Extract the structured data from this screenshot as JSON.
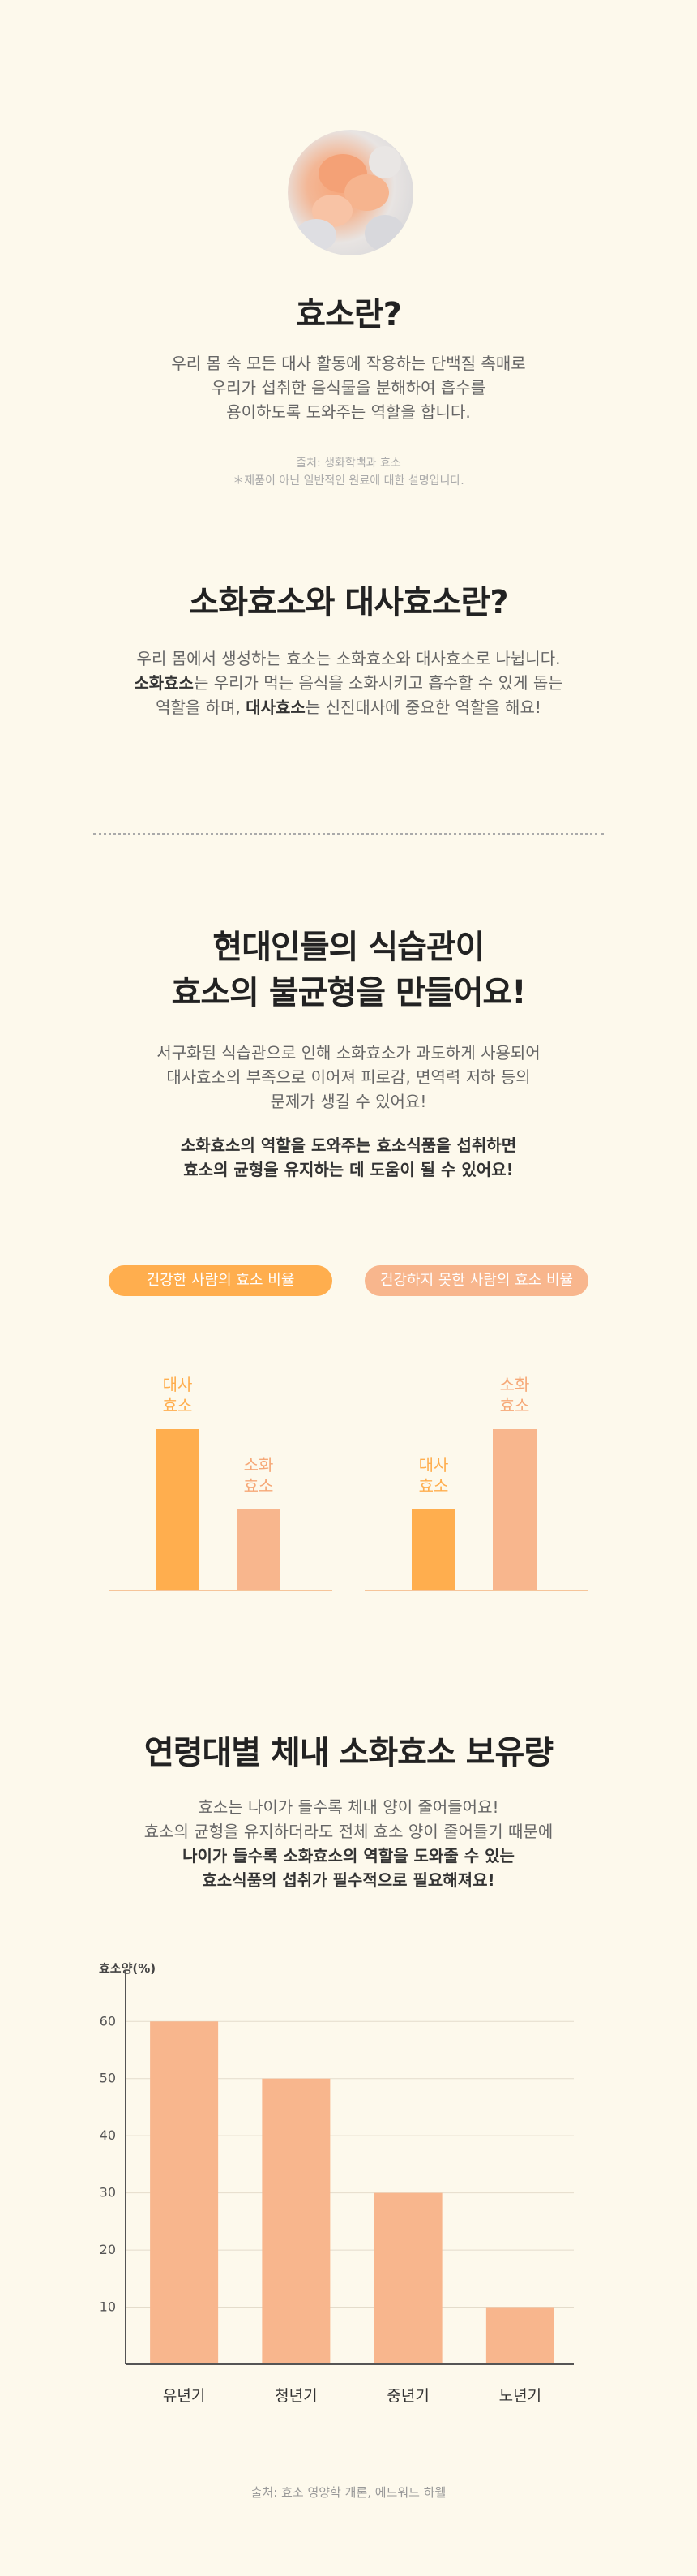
{
  "section1": {
    "title": "효소란?",
    "desc": [
      "우리 몸 속 모든 대사 활동에 작용하는 단백질 촉매로",
      "우리가 섭취한 음식물을 분해하여 흡수를",
      "용이하도록 도와주는 역할을 합니다."
    ],
    "source": "출처: 생화학백과 효소",
    "note": "＊제품이 아닌 일반적인 원료에 대한 설명입니다."
  },
  "section2": {
    "title": "소화효소와 대사효소란?",
    "line1": "우리 몸에서 생성하는 효소는 소화효소와 대사효소로 나뉩니다.",
    "line2_bold": "소화효소",
    "line2_rest": "는 우리가 먹는 음식을 소화시키고 흡수할 수 있게 돕는",
    "line3_pre": "역할을 하며, ",
    "line3_bold": "대사효소",
    "line3_rest": "는 신진대사에 중요한 역할을 해요!"
  },
  "section3": {
    "title": [
      "현대인들의 식습관이",
      "효소의 불균형을 만들어요!"
    ],
    "desc": [
      "서구화된 식습관으로 인해 소화효소가 과도하게 사용되어",
      "대사효소의 부족으로 이어져 피로감, 면역력 저하 등의",
      "문제가 생길 수 있어요!"
    ],
    "bold": [
      "소화효소의 역할을 도와주는 효소식품을 섭취하면",
      "효소의 균형을 유지하는 데 도움이 될 수 있어요!"
    ],
    "healthy_label": "건강한 사람의 효소 비율",
    "unhealthy_label": "건강하지 못한 사람의 효소 비율",
    "metabolic": [
      "대사",
      "효소"
    ],
    "digestive": [
      "소화",
      "효소"
    ]
  },
  "section4": {
    "title": "연령대별 체내 소화효소 보유량",
    "desc": [
      "효소는 나이가 들수록 체내 양이 줄어들어요!",
      "효소의 균형을 유지하더라도 전체 효소 양이 줄어들기 때문에"
    ],
    "bold": [
      "나이가 들수록 소화효소의 역할을 도와줄 수 있는",
      "효소식품의 섭취가 필수적으로 필요해져요!"
    ],
    "source": "출처: 효소 영양학 개론, 에드워드 하웰"
  },
  "colors": {
    "background": "#fdf9ec",
    "orange": "#ffae4e",
    "salmon": "#f8b68d",
    "axis": "#555555",
    "grid": "#e4dccb"
  },
  "chart_data": [
    {
      "type": "bar",
      "title": "건강한 사람의 효소 비율",
      "categories": [
        "대사 효소",
        "소화 효소"
      ],
      "values": [
        2,
        1
      ]
    },
    {
      "type": "bar",
      "title": "건강하지 못한 사람의 효소 비율",
      "categories": [
        "대사 효소",
        "소화 효소"
      ],
      "values": [
        1,
        2
      ]
    },
    {
      "type": "bar",
      "title": "연령대별 체내 소화효소 보유량",
      "ylabel": "효소양(%)",
      "categories": [
        "유년기",
        "청년기",
        "중년기",
        "노년기"
      ],
      "values": [
        60,
        50,
        30,
        10
      ],
      "yticks": [
        10,
        20,
        30,
        40,
        50,
        60
      ],
      "ylim": [
        0,
        66
      ],
      "grid": true
    }
  ]
}
